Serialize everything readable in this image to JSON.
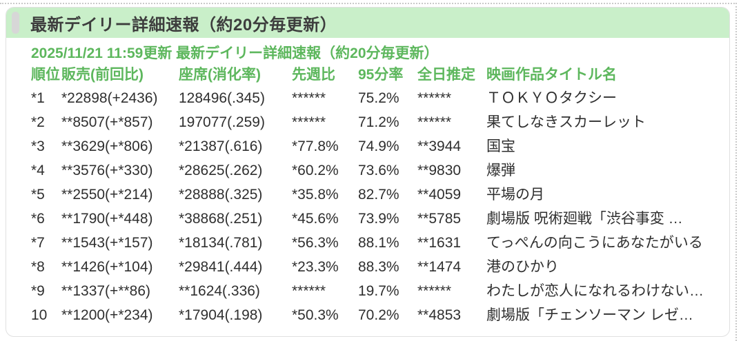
{
  "colors": {
    "accent_green": "#5db75d",
    "titlebar_bg": "#c9efc9",
    "text_dark": "#3d3d3d"
  },
  "titlebar": {
    "title": "最新デイリー詳細速報（約20分毎更新）"
  },
  "report": {
    "updated_line": "2025/11/21 11:59更新 最新デイリー詳細速報（約20分毎更新）",
    "columns": {
      "rank": "順位",
      "sales": "販売(前回比)",
      "seats": "座席(消化率)",
      "prev_week": "先週比",
      "rate95": "95分率",
      "day_estimate": "全日推定",
      "title": "映画作品タイトル名"
    },
    "rows": [
      {
        "rank": "*1",
        "sales": "*22898(+2436)",
        "seats": "128496(.345)",
        "prev_week": "******",
        "rate95": "75.2%",
        "day_estimate": "******",
        "title": "ＴＯＫＹＯタクシー"
      },
      {
        "rank": "*2",
        "sales": "**8507(+*857)",
        "seats": "197077(.259)",
        "prev_week": "******",
        "rate95": "71.2%",
        "day_estimate": "******",
        "title": "果てしなきスカーレット"
      },
      {
        "rank": "*3",
        "sales": "**3629(+*806)",
        "seats": "*21387(.616)",
        "prev_week": "*77.8%",
        "rate95": "74.9%",
        "day_estimate": "**3944",
        "title": "国宝"
      },
      {
        "rank": "*4",
        "sales": "**3576(+*330)",
        "seats": "*28625(.262)",
        "prev_week": "*60.2%",
        "rate95": "73.6%",
        "day_estimate": "**9830",
        "title": "爆弾"
      },
      {
        "rank": "*5",
        "sales": "**2550(+*214)",
        "seats": "*28888(.325)",
        "prev_week": "*35.8%",
        "rate95": "82.7%",
        "day_estimate": "**4059",
        "title": "平場の月"
      },
      {
        "rank": "*6",
        "sales": "**1790(+*448)",
        "seats": "*38868(.251)",
        "prev_week": "*45.6%",
        "rate95": "73.9%",
        "day_estimate": "**5785",
        "title": "劇場版 呪術廻戦「渋谷事変 …"
      },
      {
        "rank": "*7",
        "sales": "**1543(+*157)",
        "seats": "*18134(.781)",
        "prev_week": "*56.3%",
        "rate95": "88.1%",
        "day_estimate": "**1631",
        "title": "てっぺんの向こうにあなたがいる"
      },
      {
        "rank": "*8",
        "sales": "**1426(+*104)",
        "seats": "*29841(.444)",
        "prev_week": "*23.3%",
        "rate95": "88.3%",
        "day_estimate": "**1474",
        "title": "港のひかり"
      },
      {
        "rank": "*9",
        "sales": "**1337(+**86)",
        "seats": "**1624(.336)",
        "prev_week": "******",
        "rate95": "19.7%",
        "day_estimate": "******",
        "title": "わたしが恋人になれるわけない…"
      },
      {
        "rank": "10",
        "sales": "**1200(+*234)",
        "seats": "*17904(.198)",
        "prev_week": "*50.3%",
        "rate95": "70.2%",
        "day_estimate": "**4853",
        "title": "劇場版「チェンソーマン レゼ…"
      }
    ]
  }
}
